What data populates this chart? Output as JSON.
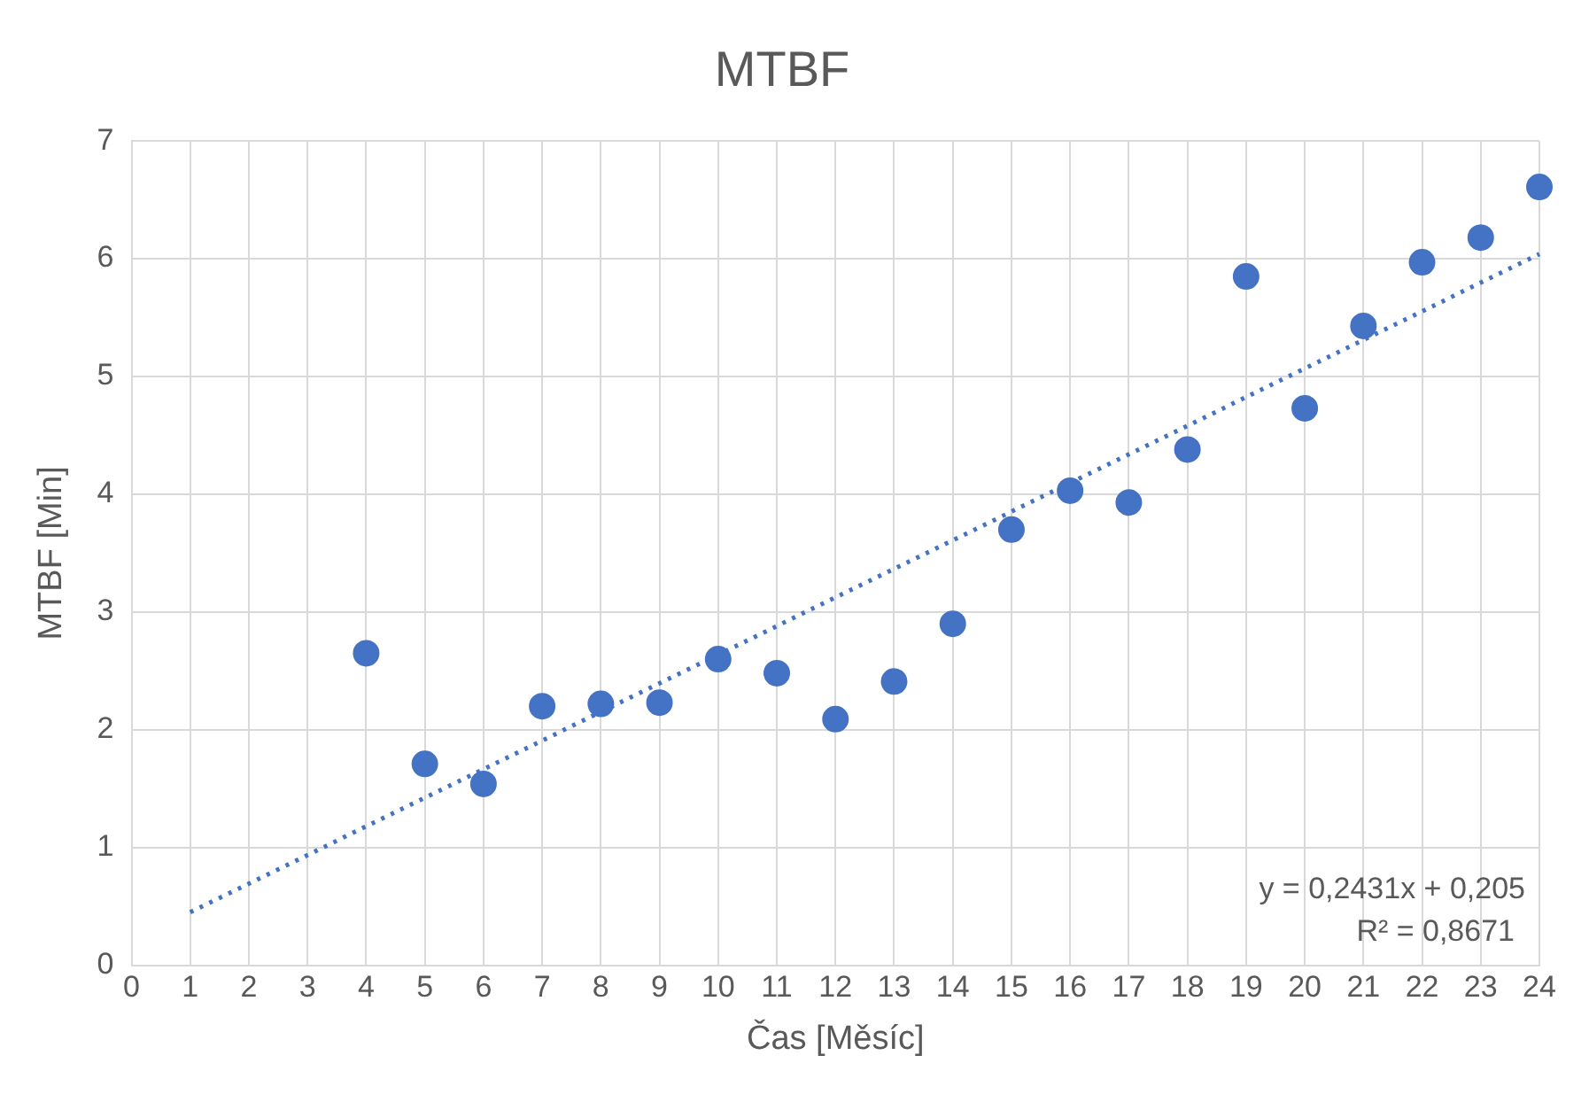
{
  "chart_data": {
    "type": "scatter",
    "title": "MTBF",
    "xlabel": "Čas [Měsíc]",
    "ylabel": "MTBF [Min]",
    "series": [
      {
        "color": "#4472c4",
        "marker": "circle",
        "x": [
          4,
          5,
          6,
          7,
          8,
          9,
          10,
          11,
          12,
          13,
          14,
          15,
          16,
          17,
          18,
          19,
          20,
          21,
          22,
          23,
          24
        ],
        "values": [
          2.65,
          1.71,
          1.54,
          2.2,
          2.22,
          2.23,
          2.6,
          2.48,
          2.09,
          2.41,
          2.9,
          3.7,
          4.03,
          3.93,
          4.38,
          5.85,
          4.73,
          5.43,
          5.97,
          6.18,
          6.61
        ]
      },
      {
        "type": "line",
        "color": "#4472c4",
        "line_style": "dotted",
        "marker": "none",
        "x": [
          1,
          24
        ],
        "values": [
          0.45,
          6.04
        ]
      }
    ],
    "xlim": [
      0,
      24
    ],
    "xticks": [
      0,
      1,
      2,
      3,
      4,
      5,
      6,
      7,
      8,
      9,
      10,
      11,
      12,
      13,
      14,
      15,
      16,
      17,
      18,
      19,
      20,
      21,
      22,
      23,
      24
    ],
    "ylim": [
      0,
      7
    ],
    "yticks": [
      0,
      1,
      2,
      3,
      4,
      5,
      6,
      7
    ],
    "grid": true,
    "legend": false,
    "annotations": [
      "y = 0,2431x + 0,205",
      "R² = 0,8671"
    ]
  }
}
